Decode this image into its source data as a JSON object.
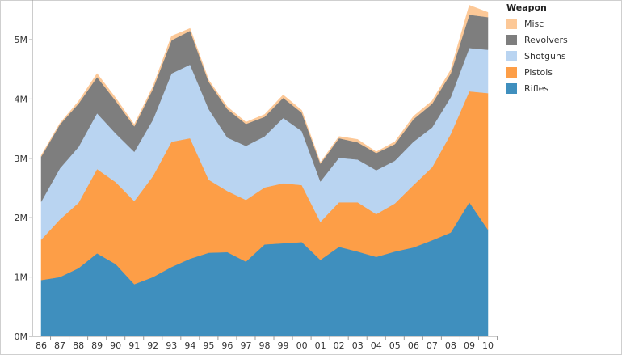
{
  "chart_data": {
    "type": "area",
    "stacked": true,
    "categories": [
      "86",
      "87",
      "88",
      "89",
      "90",
      "91",
      "92",
      "93",
      "94",
      "95",
      "96",
      "97",
      "98",
      "99",
      "00",
      "01",
      "02",
      "03",
      "04",
      "05",
      "06",
      "07",
      "08",
      "09",
      "10"
    ],
    "ylim": [
      0,
      5600000
    ],
    "y_ticks": [
      {
        "value": 0,
        "label": "0M"
      },
      {
        "value": 1000000,
        "label": "1M"
      },
      {
        "value": 2000000,
        "label": "2M"
      },
      {
        "value": 3000000,
        "label": "3M"
      },
      {
        "value": 4000000,
        "label": "4M"
      },
      {
        "value": 5000000,
        "label": "5M"
      }
    ],
    "grid": false,
    "legend": {
      "title": "Weapon",
      "position": "right"
    },
    "series": [
      {
        "name": "Rifles",
        "color": "#3f8fbe",
        "values": [
          950000,
          1000000,
          1150000,
          1400000,
          1220000,
          880000,
          1000000,
          1170000,
          1310000,
          1410000,
          1420000,
          1260000,
          1550000,
          1570000,
          1590000,
          1290000,
          1510000,
          1430000,
          1340000,
          1430000,
          1500000,
          1620000,
          1750000,
          2260000,
          1800000
        ]
      },
      {
        "name": "Pistols",
        "color": "#fd9e47",
        "values": [
          680000,
          970000,
          1100000,
          1420000,
          1380000,
          1400000,
          1700000,
          2110000,
          2030000,
          1230000,
          1030000,
          1040000,
          960000,
          1010000,
          960000,
          640000,
          750000,
          830000,
          720000,
          810000,
          1050000,
          1230000,
          1660000,
          1870000,
          2300000
        ]
      },
      {
        "name": "Shotguns",
        "color": "#b9d4f1",
        "values": [
          640000,
          860000,
          940000,
          940000,
          820000,
          830000,
          950000,
          1150000,
          1240000,
          1190000,
          900000,
          910000,
          860000,
          1100000,
          910000,
          680000,
          750000,
          720000,
          740000,
          720000,
          730000,
          670000,
          620000,
          730000,
          730000
        ]
      },
      {
        "name": "Revolvers",
        "color": "#7e7e7e",
        "values": [
          760000,
          740000,
          730000,
          610000,
          550000,
          430000,
          520000,
          560000,
          570000,
          460000,
          480000,
          370000,
          330000,
          340000,
          310000,
          300000,
          330000,
          290000,
          290000,
          280000,
          380000,
          400000,
          400000,
          560000,
          550000
        ]
      },
      {
        "name": "Misc",
        "color": "#fcc897",
        "values": [
          20000,
          20000,
          40000,
          60000,
          50000,
          30000,
          40000,
          70000,
          40000,
          30000,
          40000,
          30000,
          40000,
          50000,
          40000,
          20000,
          30000,
          50000,
          20000,
          40000,
          50000,
          50000,
          60000,
          160000,
          80000
        ]
      }
    ]
  }
}
